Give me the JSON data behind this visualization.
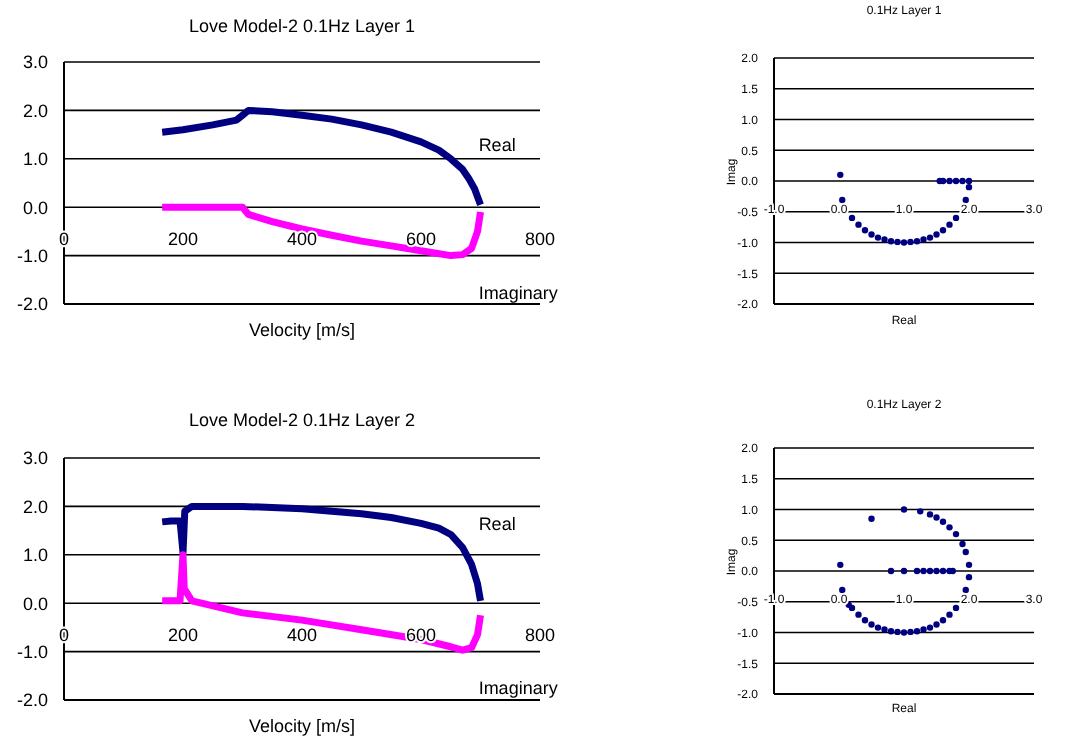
{
  "chart_data": [
    {
      "type": "line",
      "title": "Love Model-2 0.1Hz Layer 1",
      "xlabel": "Velocity [m/s]",
      "xlim": [
        0,
        800
      ],
      "xticks": [
        0,
        200,
        400,
        600,
        800
      ],
      "ylim": [
        -2,
        3
      ],
      "yticks": [
        {
          "value": -2,
          "label": "-2.0"
        },
        {
          "value": -1,
          "label": "-1.0"
        },
        {
          "value": 0,
          "label": "0.0"
        },
        {
          "value": 1,
          "label": "1.0"
        },
        {
          "value": 2,
          "label": "2.0"
        },
        {
          "value": 3,
          "label": "3.0"
        }
      ],
      "grid": "y",
      "series": [
        {
          "name": "Real",
          "color": "#000080",
          "x": [
            165,
            200,
            250,
            290,
            300,
            310,
            350,
            400,
            450,
            500,
            550,
            600,
            630,
            650,
            670,
            680,
            690,
            700
          ],
          "values": [
            1.55,
            1.6,
            1.7,
            1.8,
            1.9,
            2.0,
            1.97,
            1.9,
            1.82,
            1.7,
            1.55,
            1.35,
            1.18,
            1.0,
            0.78,
            0.6,
            0.38,
            0.05
          ]
        },
        {
          "name": "Imaginary",
          "color": "#ff00ff",
          "x": [
            165,
            200,
            250,
            300,
            310,
            350,
            400,
            450,
            500,
            550,
            600,
            650,
            670,
            685,
            695,
            700
          ],
          "values": [
            0,
            0,
            0,
            0,
            -0.15,
            -0.3,
            -0.45,
            -0.58,
            -0.7,
            -0.8,
            -0.9,
            -1.0,
            -0.98,
            -0.85,
            -0.5,
            -0.1
          ]
        }
      ]
    },
    {
      "type": "scatter",
      "title": "0.1Hz Layer 1",
      "xlabel": "Real",
      "ylabel": "Imag",
      "marker": "circle",
      "xlim": [
        -1,
        3
      ],
      "xticks": [
        {
          "value": -1,
          "label": "-1.0"
        },
        {
          "value": 0,
          "label": "0.0"
        },
        {
          "value": 1,
          "label": "1.0"
        },
        {
          "value": 2,
          "label": "2.0"
        },
        {
          "value": 3,
          "label": "3.0"
        }
      ],
      "ylim": [
        -2,
        2
      ],
      "yticks": [
        {
          "value": -2,
          "label": "-2.0"
        },
        {
          "value": -1.5,
          "label": "-1.5"
        },
        {
          "value": -1,
          "label": "-1.0"
        },
        {
          "value": -0.5,
          "label": "-0.5"
        },
        {
          "value": 0,
          "label": "0.0"
        },
        {
          "value": 0.5,
          "label": "0.5"
        },
        {
          "value": 1,
          "label": "1.0"
        },
        {
          "value": 1.5,
          "label": "1.5"
        },
        {
          "value": 2,
          "label": "2.0"
        }
      ],
      "grid": "y",
      "series": [
        {
          "color": "#000080",
          "x": [
            0.02,
            0.05,
            0.2,
            0.3,
            0.4,
            0.5,
            0.6,
            0.7,
            0.8,
            0.9,
            1.0,
            1.1,
            1.2,
            1.3,
            1.4,
            1.5,
            1.6,
            1.7,
            1.8,
            1.95,
            2.0,
            2.0,
            1.9,
            1.8,
            1.7,
            1.6,
            1.55
          ],
          "values": [
            0.1,
            -0.31,
            -0.6,
            -0.71,
            -0.8,
            -0.87,
            -0.92,
            -0.95,
            -0.98,
            -0.99,
            -1.0,
            -0.99,
            -0.98,
            -0.95,
            -0.92,
            -0.87,
            -0.8,
            -0.71,
            -0.6,
            -0.31,
            -0.1,
            0,
            0,
            0,
            0,
            0,
            0
          ]
        }
      ]
    },
    {
      "type": "line",
      "title": "Love Model-2 0.1Hz Layer 2",
      "xlabel": "Velocity [m/s]",
      "xlim": [
        0,
        800
      ],
      "xticks": [
        0,
        200,
        400,
        600,
        800
      ],
      "ylim": [
        -2,
        3
      ],
      "yticks": [
        {
          "value": -2,
          "label": "-2.0"
        },
        {
          "value": -1,
          "label": "-1.0"
        },
        {
          "value": 0,
          "label": "0.0"
        },
        {
          "value": 1,
          "label": "1.0"
        },
        {
          "value": 2,
          "label": "2.0"
        },
        {
          "value": 3,
          "label": "3.0"
        }
      ],
      "grid": "y",
      "series": [
        {
          "name": "Real",
          "color": "#000080",
          "x": [
            165,
            180,
            195,
            200,
            203,
            215,
            300,
            400,
            500,
            550,
            600,
            630,
            650,
            670,
            685,
            695,
            700
          ],
          "values": [
            1.68,
            1.7,
            1.7,
            1.05,
            1.9,
            2.0,
            2.0,
            1.95,
            1.85,
            1.77,
            1.65,
            1.55,
            1.42,
            1.15,
            0.8,
            0.4,
            0.05
          ]
        },
        {
          "name": "Imaginary",
          "color": "#ff00ff",
          "x": [
            165,
            195,
            200,
            202,
            215,
            300,
            400,
            500,
            600,
            650,
            670,
            685,
            695,
            700
          ],
          "values": [
            0.05,
            0.05,
            1.0,
            0.3,
            0.05,
            -0.2,
            -0.35,
            -0.55,
            -0.75,
            -0.9,
            -0.97,
            -0.92,
            -0.65,
            -0.25
          ]
        }
      ]
    },
    {
      "type": "scatter",
      "title": "0.1Hz Layer 2",
      "xlabel": "Real",
      "ylabel": "Imag",
      "marker": "circle",
      "xlim": [
        -1,
        3
      ],
      "xticks": [
        {
          "value": -1,
          "label": "-1.0"
        },
        {
          "value": 0,
          "label": "0.0"
        },
        {
          "value": 1,
          "label": "1.0"
        },
        {
          "value": 2,
          "label": "2.0"
        },
        {
          "value": 3,
          "label": "3.0"
        }
      ],
      "ylim": [
        -2,
        2
      ],
      "yticks": [
        {
          "value": -2,
          "label": "-2.0"
        },
        {
          "value": -1.5,
          "label": "-1.5"
        },
        {
          "value": -1,
          "label": "-1.0"
        },
        {
          "value": -0.5,
          "label": "-0.5"
        },
        {
          "value": 0,
          "label": "0.0"
        },
        {
          "value": 0.5,
          "label": "0.5"
        },
        {
          "value": 1,
          "label": "1.0"
        },
        {
          "value": 1.5,
          "label": "1.5"
        },
        {
          "value": 2,
          "label": "2.0"
        }
      ],
      "grid": "y",
      "series": [
        {
          "color": "#000080",
          "x": [
            0.02,
            0.5,
            1.0,
            1.25,
            1.4,
            1.5,
            1.6,
            1.7,
            1.8,
            1.9,
            1.95,
            2.0,
            2.0,
            1.95,
            1.8,
            1.7,
            1.6,
            1.5,
            1.4,
            1.3,
            1.2,
            1.1,
            1.0,
            0.9,
            0.8,
            0.7,
            0.6,
            0.5,
            0.4,
            0.3,
            0.2,
            0.15,
            0.05,
            0.8,
            1.0,
            1.2,
            1.3,
            1.4,
            1.5,
            1.6,
            1.7,
            1.75
          ],
          "values": [
            0.1,
            0.85,
            1.0,
            0.97,
            0.92,
            0.87,
            0.8,
            0.71,
            0.6,
            0.44,
            0.31,
            0.1,
            -0.1,
            -0.31,
            -0.6,
            -0.71,
            -0.8,
            -0.87,
            -0.92,
            -0.95,
            -0.98,
            -0.99,
            -1.0,
            -0.99,
            -0.98,
            -0.95,
            -0.92,
            -0.87,
            -0.8,
            -0.71,
            -0.6,
            -0.55,
            -0.31,
            0,
            0,
            0,
            0,
            0,
            0,
            0,
            0,
            0
          ]
        }
      ]
    }
  ]
}
